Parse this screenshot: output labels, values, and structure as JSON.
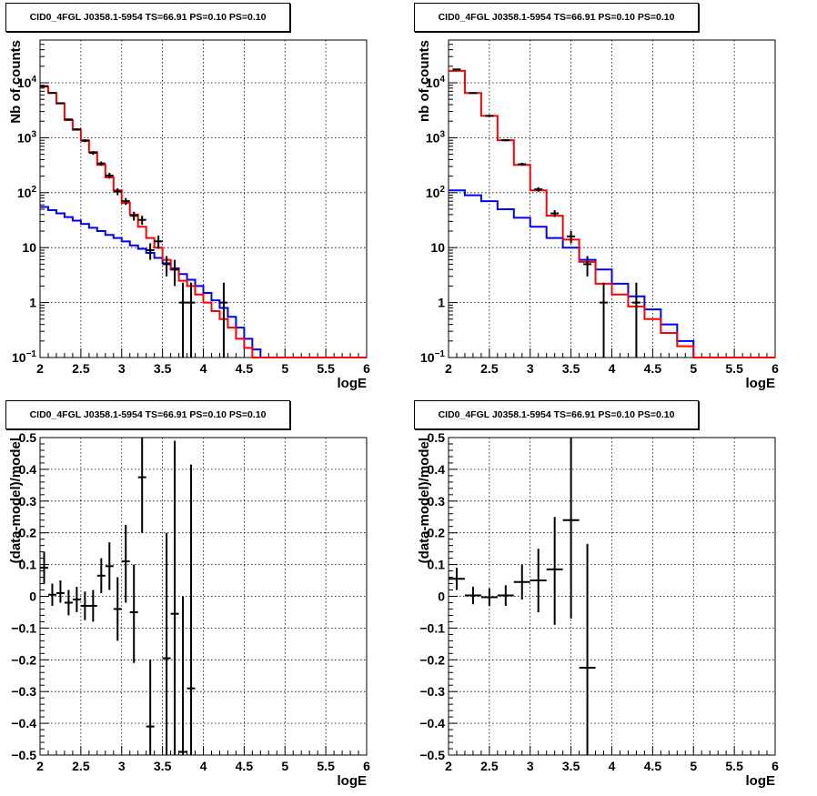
{
  "pads": [
    {
      "title": "CID0_4FGL J0358.1-5954 TS=66.91 PS=0.10 PS=0.10",
      "chart_data": {
        "type": "histogram",
        "title": "CID0_4FGL J0358.1-5954 TS=66.91 PS=0.10 PS=0.10",
        "xlabel": "logE",
        "ylabel": "Nb of counts",
        "xlim": [
          2,
          6
        ],
        "ylim": [
          0.1,
          60000
        ],
        "yscale": "log",
        "grid": true,
        "x_ticks": [
          "2",
          "2.5",
          "3",
          "3.5",
          "4",
          "4.5",
          "5",
          "5.5",
          "6"
        ],
        "y_ticks": [
          {
            "v": 0.1,
            "base": "10",
            "exp": "−1"
          },
          {
            "v": 1,
            "t": "1"
          },
          {
            "v": 10,
            "t": "10"
          },
          {
            "v": 100,
            "base": "10",
            "exp": "2"
          },
          {
            "v": 1000,
            "base": "10",
            "exp": "3"
          },
          {
            "v": 10000,
            "base": "10",
            "exp": "4"
          }
        ],
        "bin_edges": [
          2,
          2.1,
          2.2,
          2.3,
          2.4,
          2.5,
          2.6,
          2.7,
          2.8,
          2.9,
          3.0,
          3.1,
          3.2,
          3.3,
          3.4,
          3.5,
          3.6,
          3.7,
          3.8,
          3.9,
          4.0,
          4.1,
          4.2,
          4.3,
          4.4,
          4.5,
          4.6,
          4.7,
          4.8,
          4.9,
          5.0,
          5.1,
          5.2,
          5.3,
          5.4,
          5.5,
          5.6,
          5.7,
          5.8,
          5.9,
          6.0
        ],
        "series": [
          {
            "color": "#0000ff",
            "kind": "step",
            "values": [
              55,
              48,
              42,
              36,
              31,
              27,
              23,
              20,
              17,
              15,
              13,
              11,
              9.5,
              8,
              6.5,
              5.2,
              4.2,
              3.3,
              2.6,
              2.0,
              1.5,
              1.1,
              0.8,
              0.55,
              0.35,
              0.22,
              0.14,
              0.1,
              0.1,
              0.1,
              0.1,
              0.1,
              0.1,
              0.1,
              0.1,
              0.1,
              0.1,
              0.1,
              0.1,
              0.1
            ]
          },
          {
            "color": "#ff0000",
            "kind": "step",
            "values": [
              8500,
              6500,
              4200,
              2100,
              1400,
              900,
              550,
              320,
              190,
              110,
              65,
              40,
              24,
              15,
              10,
              6,
              4,
              2.5,
              2,
              1.4,
              1,
              0.7,
              0.5,
              0.35,
              0.22,
              0.15,
              0.1,
              0.1,
              0.1,
              0.1,
              0.1,
              0.1,
              0.1,
              0.1,
              0.1,
              0.1,
              0.1,
              0.1,
              0.1,
              0.1
            ]
          },
          {
            "color": "#000000",
            "kind": "points",
            "points": [
              {
                "x": 2.05,
                "y": 8700,
                "lo": 8500,
                "hi": 8900
              },
              {
                "x": 2.15,
                "y": 6550,
                "lo": 6400,
                "hi": 6700
              },
              {
                "x": 2.25,
                "y": 4250,
                "lo": 4130,
                "hi": 4370
              },
              {
                "x": 2.35,
                "y": 2150,
                "lo": 2060,
                "hi": 2240
              },
              {
                "x": 2.45,
                "y": 1420,
                "lo": 1350,
                "hi": 1490
              },
              {
                "x": 2.55,
                "y": 880,
                "lo": 830,
                "hi": 930
              },
              {
                "x": 2.65,
                "y": 530,
                "lo": 490,
                "hi": 570
              },
              {
                "x": 2.75,
                "y": 340,
                "lo": 310,
                "hi": 370
              },
              {
                "x": 2.85,
                "y": 205,
                "lo": 180,
                "hi": 230
              },
              {
                "x": 2.95,
                "y": 105,
                "lo": 90,
                "hi": 120
              },
              {
                "x": 3.05,
                "y": 70,
                "lo": 60,
                "hi": 80
              },
              {
                "x": 3.15,
                "y": 38,
                "lo": 31,
                "hi": 45
              },
              {
                "x": 3.25,
                "y": 32,
                "lo": 26,
                "hi": 38
              },
              {
                "x": 3.35,
                "y": 9,
                "lo": 6,
                "hi": 12
              },
              {
                "x": 3.45,
                "y": 13,
                "lo": 9.5,
                "hi": 16.5
              },
              {
                "x": 3.55,
                "y": 5,
                "lo": 3,
                "hi": 7
              },
              {
                "x": 3.65,
                "y": 4,
                "lo": 2,
                "hi": 6
              },
              {
                "x": 3.75,
                "y": 1,
                "lo": 0.1,
                "hi": 2.3
              },
              {
                "x": 3.85,
                "y": 1,
                "lo": 0.1,
                "hi": 2.3
              },
              {
                "x": 4.25,
                "y": 1,
                "lo": 0.1,
                "hi": 2.3
              }
            ]
          }
        ]
      }
    },
    {
      "title": "CID0_4FGL J0358.1-5954 TS=66.91 PS=0.10 PS=0.10",
      "chart_data": {
        "type": "histogram",
        "title": "CID0_4FGL J0358.1-5954 TS=66.91 PS=0.10 PS=0.10",
        "xlabel": "logE",
        "ylabel": "nb of counts",
        "xlim": [
          2,
          6
        ],
        "ylim": [
          0.1,
          60000
        ],
        "yscale": "log",
        "grid": true,
        "x_ticks": [
          "2",
          "2.5",
          "3",
          "3.5",
          "4",
          "4.5",
          "5",
          "5.5",
          "6"
        ],
        "y_ticks": [
          {
            "v": 0.1,
            "base": "10",
            "exp": "−1"
          },
          {
            "v": 1,
            "t": "1"
          },
          {
            "v": 10,
            "t": "10"
          },
          {
            "v": 100,
            "base": "10",
            "exp": "2"
          },
          {
            "v": 1000,
            "base": "10",
            "exp": "3"
          },
          {
            "v": 10000,
            "base": "10",
            "exp": "4"
          }
        ],
        "bin_edges": [
          2,
          2.2,
          2.4,
          2.6,
          2.8,
          3.0,
          3.2,
          3.4,
          3.6,
          3.8,
          4.0,
          4.2,
          4.4,
          4.6,
          4.8,
          5.0,
          5.2,
          5.4,
          5.6,
          5.8,
          6.0
        ],
        "series": [
          {
            "color": "#0000ff",
            "kind": "step",
            "values": [
              110,
              90,
              70,
              50,
              35,
              24,
              15,
              10,
              6,
              4,
              2.2,
              1.3,
              0.75,
              0.4,
              0.2,
              0.1,
              0.1,
              0.1,
              0.1,
              0.1
            ]
          },
          {
            "color": "#ff0000",
            "kind": "step",
            "values": [
              16500,
              6500,
              2500,
              900,
              320,
              110,
              38,
              14,
              5.5,
              2.2,
              1.4,
              0.85,
              0.5,
              0.28,
              0.16,
              0.1,
              0.1,
              0.1,
              0.1,
              0.1
            ]
          },
          {
            "color": "#000000",
            "kind": "points",
            "points": [
              {
                "x": 2.1,
                "y": 17500,
                "lo": 17100,
                "hi": 17900
              },
              {
                "x": 2.3,
                "y": 6500,
                "lo": 6300,
                "hi": 6700
              },
              {
                "x": 2.5,
                "y": 2500,
                "lo": 2400,
                "hi": 2600
              },
              {
                "x": 2.7,
                "y": 900,
                "lo": 860,
                "hi": 940
              },
              {
                "x": 2.9,
                "y": 330,
                "lo": 310,
                "hi": 350
              },
              {
                "x": 3.1,
                "y": 115,
                "lo": 104,
                "hi": 126
              },
              {
                "x": 3.3,
                "y": 42,
                "lo": 36,
                "hi": 48
              },
              {
                "x": 3.5,
                "y": 16,
                "lo": 12,
                "hi": 20
              },
              {
                "x": 3.7,
                "y": 5,
                "lo": 3,
                "hi": 7
              },
              {
                "x": 3.9,
                "y": 1,
                "lo": 0.1,
                "hi": 2.3
              },
              {
                "x": 4.3,
                "y": 1,
                "lo": 0.1,
                "hi": 2.3
              }
            ]
          }
        ]
      }
    },
    {
      "title": "CID0_4FGL J0358.1-5954 TS=66.91 PS=0.10 PS=0.10",
      "chart_data": {
        "type": "scatter",
        "title": "CID0_4FGL J0358.1-5954 TS=66.91 PS=0.10 PS=0.10",
        "xlabel": "logE",
        "ylabel": "(data-model)/model",
        "xlim": [
          2,
          6
        ],
        "ylim": [
          -0.5,
          0.5
        ],
        "yscale": "linear",
        "grid": true,
        "x_ticks": [
          "2",
          "2.5",
          "3",
          "3.5",
          "4",
          "4.5",
          "5",
          "5.5",
          "6"
        ],
        "y_ticks": [
          {
            "v": -0.5,
            "t": "−0.5"
          },
          {
            "v": -0.4,
            "t": "−0.4"
          },
          {
            "v": -0.3,
            "t": "−0.3"
          },
          {
            "v": -0.2,
            "t": "−0.2"
          },
          {
            "v": -0.1,
            "t": "−0.1"
          },
          {
            "v": 0,
            "t": "0"
          },
          {
            "v": 0.1,
            "t": "0.1"
          },
          {
            "v": 0.2,
            "t": "0.2"
          },
          {
            "v": 0.3,
            "t": "0.3"
          },
          {
            "v": 0.4,
            "t": "0.4"
          },
          {
            "v": 0.5,
            "t": "0.5"
          }
        ],
        "series": [
          {
            "color": "#000000",
            "kind": "errbars",
            "hw": 0.05,
            "points": [
              {
                "x": 2.05,
                "y": 0.09,
                "lo": 0.04,
                "hi": 0.14
              },
              {
                "x": 2.15,
                "y": 0.005,
                "lo": -0.03,
                "hi": 0.04
              },
              {
                "x": 2.25,
                "y": 0.01,
                "lo": -0.02,
                "hi": 0.05
              },
              {
                "x": 2.35,
                "y": -0.02,
                "lo": -0.06,
                "hi": 0.02
              },
              {
                "x": 2.45,
                "y": -0.01,
                "lo": -0.05,
                "hi": 0.03
              },
              {
                "x": 2.55,
                "y": -0.03,
                "lo": -0.075,
                "hi": 0.015
              },
              {
                "x": 2.65,
                "y": -0.03,
                "lo": -0.08,
                "hi": 0.02
              },
              {
                "x": 2.75,
                "y": 0.065,
                "lo": 0.01,
                "hi": 0.12
              },
              {
                "x": 2.85,
                "y": 0.095,
                "lo": 0.02,
                "hi": 0.17
              },
              {
                "x": 2.95,
                "y": -0.04,
                "lo": -0.14,
                "hi": 0.06
              },
              {
                "x": 3.05,
                "y": 0.11,
                "lo": -0.02,
                "hi": 0.225
              },
              {
                "x": 3.15,
                "y": -0.05,
                "lo": -0.21,
                "hi": 0.1
              },
              {
                "x": 3.25,
                "y": 0.375,
                "lo": 0.2,
                "hi": 0.5
              },
              {
                "x": 3.35,
                "y": -0.41,
                "lo": -0.5,
                "hi": -0.2
              },
              {
                "x": 3.55,
                "y": -0.195,
                "lo": -0.5,
                "hi": 0.2
              },
              {
                "x": 3.65,
                "y": -0.055,
                "lo": -0.5,
                "hi": 0.49
              },
              {
                "x": 3.75,
                "y": -0.49,
                "lo": -0.5,
                "hi": 0.0
              },
              {
                "x": 3.85,
                "y": -0.29,
                "lo": -0.5,
                "hi": 0.415
              }
            ]
          }
        ]
      }
    },
    {
      "title": "CID0_4FGL J0358.1-5954 TS=66.91 PS=0.10 PS=0.10",
      "chart_data": {
        "type": "scatter",
        "title": "CID0_4FGL J0358.1-5954 TS=66.91 PS=0.10 PS=0.10",
        "xlabel": "logE",
        "ylabel": "(data-model)/model",
        "xlim": [
          2,
          6
        ],
        "ylim": [
          -0.5,
          0.5
        ],
        "yscale": "linear",
        "grid": true,
        "x_ticks": [
          "2",
          "2.5",
          "3",
          "3.5",
          "4",
          "4.5",
          "5",
          "5.5",
          "6"
        ],
        "y_ticks": [
          {
            "v": -0.5,
            "t": "−0.5"
          },
          {
            "v": -0.4,
            "t": "−0.4"
          },
          {
            "v": -0.3,
            "t": "−0.3"
          },
          {
            "v": -0.2,
            "t": "−0.2"
          },
          {
            "v": -0.1,
            "t": "−0.1"
          },
          {
            "v": 0,
            "t": "0"
          },
          {
            "v": 0.1,
            "t": "0.1"
          },
          {
            "v": 0.2,
            "t": "0.2"
          },
          {
            "v": 0.3,
            "t": "0.3"
          },
          {
            "v": 0.4,
            "t": "0.4"
          },
          {
            "v": 0.5,
            "t": "0.5"
          }
        ],
        "series": [
          {
            "color": "#000000",
            "kind": "errbars",
            "hw": 0.1,
            "points": [
              {
                "x": 2.1,
                "y": 0.055,
                "lo": 0.02,
                "hi": 0.09
              },
              {
                "x": 2.3,
                "y": 0.003,
                "lo": -0.025,
                "hi": 0.03
              },
              {
                "x": 2.5,
                "y": -0.003,
                "lo": -0.03,
                "hi": 0.025
              },
              {
                "x": 2.7,
                "y": 0.003,
                "lo": -0.03,
                "hi": 0.035
              },
              {
                "x": 2.9,
                "y": 0.045,
                "lo": -0.01,
                "hi": 0.1
              },
              {
                "x": 3.1,
                "y": 0.05,
                "lo": -0.05,
                "hi": 0.15
              },
              {
                "x": 3.3,
                "y": 0.085,
                "lo": -0.09,
                "hi": 0.25
              },
              {
                "x": 3.5,
                "y": 0.24,
                "lo": -0.07,
                "hi": 0.5
              },
              {
                "x": 3.7,
                "y": -0.225,
                "lo": -0.5,
                "hi": 0.165
              }
            ]
          }
        ]
      }
    }
  ]
}
